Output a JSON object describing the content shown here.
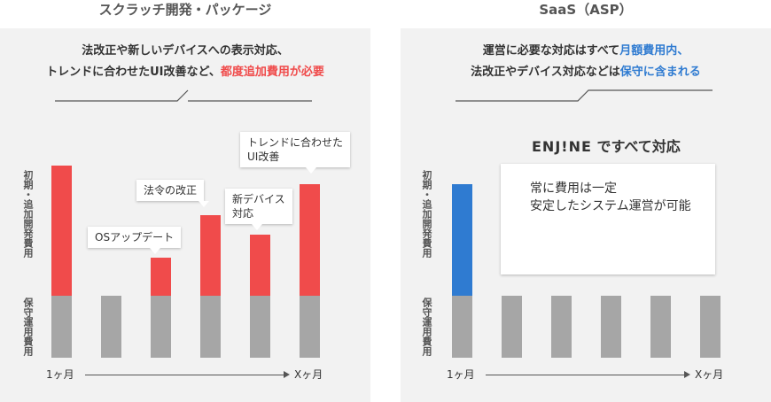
{
  "left": {
    "title": "スクラッチ開発・パッケージ",
    "headline_line1": "法改正や新しいデバイスへの表示対応、",
    "headline_line2_prefix": "トレンドに合わせたUI改善など、",
    "headline_line2_emphasis": "都度追加費用が必要",
    "ylabel_top": "初期・追加開発費用",
    "ylabel_bottom": "保守運用費用",
    "x_start": "1ヶ月",
    "x_end": "Xヶ月",
    "annotations": [
      "OSアップデート",
      "法令の改正",
      "新デバイス",
      "対応",
      "トレンドに合わせた",
      "UI改善"
    ]
  },
  "right": {
    "title": "SaaS（ASP）",
    "headline_line1_prefix": "運営に必要な対応はすべて",
    "headline_line1_emphasis": "月額費用内、",
    "headline_line2_prefix": "法改正やデバイス対応などは",
    "headline_line2_emphasis": "保守に含まれる",
    "engine_logo": "ENJ!NE",
    "engine_text": "ですべて対応",
    "box_line1": "常に費用は一定",
    "box_line2": "安定したシステム運営が可能",
    "ylabel_top": "初期・追加開発費用",
    "ylabel_bottom": "保守運用費用",
    "x_start": "1ヶ月",
    "x_end": "Xヶ月"
  },
  "colors": {
    "additional_cost": "#f04b4b",
    "initial_cost_saas": "#2f7bd1",
    "maintenance": "#a6a6a6",
    "panel_bg": "#f2f2f2"
  },
  "chart_data": [
    {
      "type": "bar",
      "stacked": true,
      "title": "スクラッチ開発・パッケージ",
      "xlabel": "",
      "ylabel": "",
      "x_endpoints": [
        "1ヶ月",
        "Xヶ月"
      ],
      "categories": [
        "1",
        "2",
        "3",
        "4",
        "5",
        "6"
      ],
      "series": [
        {
          "name": "保守運用費用",
          "values": [
            1,
            1,
            1,
            1,
            1,
            1
          ]
        },
        {
          "name": "初期・追加開発費用",
          "values": [
            2.1,
            0,
            0.62,
            1.3,
            0.99,
            1.8
          ]
        }
      ],
      "annotations": [
        {
          "category": "3",
          "text": "OSアップデート"
        },
        {
          "category": "4",
          "text": "法令の改正"
        },
        {
          "category": "5",
          "text": "新デバイス対応"
        },
        {
          "category": "6",
          "text": "トレンドに合わせたUI改善"
        }
      ]
    },
    {
      "type": "bar",
      "stacked": true,
      "title": "SaaS（ASP）",
      "xlabel": "",
      "ylabel": "",
      "x_endpoints": [
        "1ヶ月",
        "Xヶ月"
      ],
      "categories": [
        "1",
        "2",
        "3",
        "4",
        "5",
        "6"
      ],
      "series": [
        {
          "name": "保守運用費用",
          "values": [
            1,
            1,
            1,
            1,
            1,
            1
          ]
        },
        {
          "name": "初期・追加開発費用",
          "values": [
            1.8,
            0,
            0,
            0,
            0,
            0
          ]
        }
      ]
    }
  ]
}
